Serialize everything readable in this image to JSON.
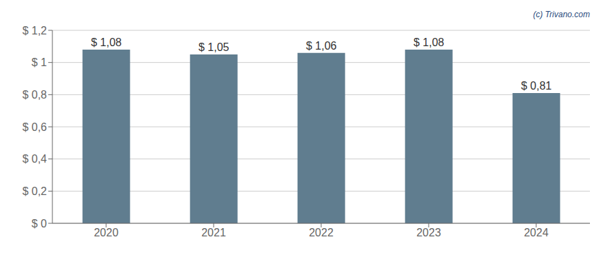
{
  "chart_data": {
    "type": "bar",
    "annotation": "(c) Trivano.com",
    "categories": [
      "2020",
      "2021",
      "2022",
      "2023",
      "2024"
    ],
    "values": [
      1.08,
      1.05,
      1.06,
      1.08,
      0.81
    ],
    "value_labels": [
      "$ 1,08",
      "$ 1,05",
      "$ 1,06",
      "$ 1,08",
      "$ 0,81"
    ],
    "data_labels": true,
    "color": "#607d8f",
    "ylim": [
      0,
      1.2
    ],
    "yticks": [
      {
        "value": 0,
        "label": "$ 0"
      },
      {
        "value": 0.2,
        "label": "$ 0,2"
      },
      {
        "value": 0.4,
        "label": "$ 0,4"
      },
      {
        "value": 0.6,
        "label": "$ 0,6"
      },
      {
        "value": 0.8,
        "label": "$ 0,8"
      },
      {
        "value": 1.0,
        "label": "$ 1"
      },
      {
        "value": 1.2,
        "label": "$ 1,2"
      }
    ],
    "grid": true
  }
}
